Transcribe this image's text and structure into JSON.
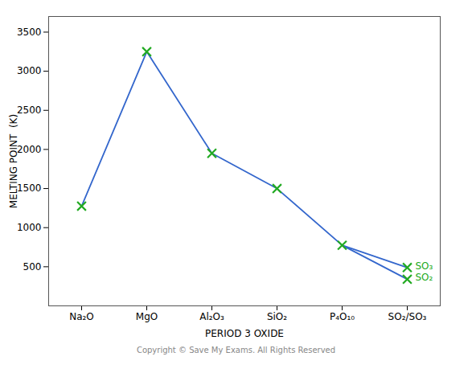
{
  "chart_data": {
    "type": "line",
    "xlabel": "PERIOD 3 OXIDE",
    "ylabel": "MELTING POINT  (K)",
    "caption": "Copyright © Save My Exams. All Rights Reserved",
    "categories": [
      "Na₂O",
      "MgO",
      "Al₂O₃",
      "SiO₂",
      "P₄O₁₀",
      "SO₂/SO₃"
    ],
    "series": [
      {
        "type": "line",
        "color": "#3366cc",
        "values": [
          1275,
          3250,
          1950,
          1500,
          775,
          null
        ]
      },
      {
        "type": "line",
        "color": "#3366cc",
        "values": [
          null,
          null,
          null,
          null,
          775,
          490
        ]
      },
      {
        "type": "line",
        "color": "#3366cc",
        "values": [
          null,
          null,
          null,
          null,
          775,
          340
        ]
      },
      {
        "type": "scatter",
        "color": "#22aa22",
        "marker": "x",
        "values": [
          1275,
          3250,
          1950,
          1500,
          775,
          490
        ]
      },
      {
        "type": "scatter",
        "color": "#22aa22",
        "marker": "x",
        "values": [
          null,
          null,
          null,
          null,
          null,
          340
        ]
      }
    ],
    "annotations": [
      {
        "text": "SO₃",
        "x": "SO₂/SO₃",
        "y": 490,
        "color": "#22aa22"
      },
      {
        "text": "SO₂",
        "x": "SO₂/SO₃",
        "y": 340,
        "color": "#22aa22"
      }
    ],
    "ylim": [
      0,
      3700
    ],
    "yticks": [
      500,
      1000,
      1500,
      2000,
      2500,
      3000,
      3500
    ],
    "grid": false
  }
}
